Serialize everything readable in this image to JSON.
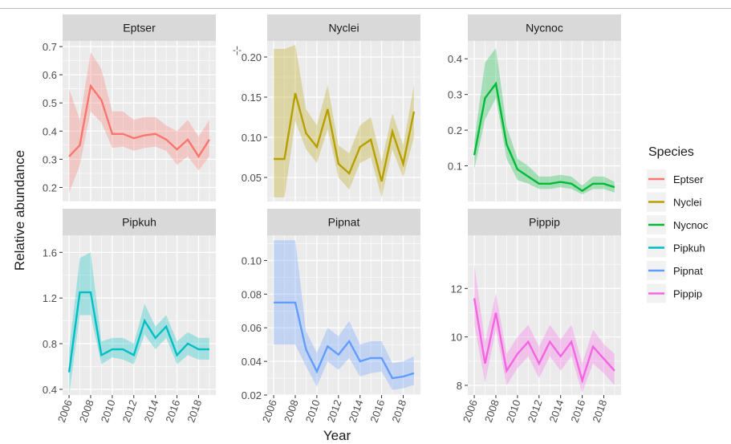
{
  "chart_data": {
    "type": "line",
    "xlabel": "Year",
    "ylabel": "Relative abundance",
    "legend": {
      "title": "Species",
      "placement": "right"
    },
    "x_ticks": [
      "2006",
      "2008",
      "2010",
      "2012",
      "2014",
      "2016",
      "2018"
    ],
    "x": [
      2006,
      2007,
      2008,
      2009,
      2010,
      2011,
      2012,
      2013,
      2014,
      2015,
      2016,
      2017,
      2018,
      2019
    ],
    "panels": [
      {
        "name": "Eptser",
        "color": "#F8766D",
        "ylim": [
          0.15,
          0.72
        ],
        "y_ticks": [
          "0.2",
          "0.3",
          "0.4",
          "0.5",
          "0.6",
          "0.7"
        ],
        "y_tick_values": [
          0.2,
          0.3,
          0.4,
          0.5,
          0.6,
          0.7
        ],
        "values": [
          0.31,
          0.35,
          0.56,
          0.51,
          0.39,
          0.39,
          0.375,
          0.385,
          0.39,
          0.37,
          0.335,
          0.37,
          0.31,
          0.37
        ],
        "lower": [
          0.18,
          0.28,
          0.47,
          0.43,
          0.34,
          0.345,
          0.33,
          0.34,
          0.345,
          0.33,
          0.28,
          0.31,
          0.26,
          0.31
        ],
        "upper": [
          0.55,
          0.44,
          0.68,
          0.62,
          0.47,
          0.47,
          0.44,
          0.45,
          0.45,
          0.42,
          0.4,
          0.44,
          0.38,
          0.44
        ]
      },
      {
        "name": "Nyclei",
        "color": "#B79F00",
        "ylim": [
          0.02,
          0.22
        ],
        "y_ticks": [
          "0.05",
          "0.10",
          "0.15",
          "0.20"
        ],
        "y_tick_values": [
          0.05,
          0.1,
          0.15,
          0.2
        ],
        "values": [
          0.073,
          0.073,
          0.155,
          0.105,
          0.088,
          0.135,
          0.067,
          0.055,
          0.088,
          0.097,
          0.045,
          0.107,
          0.067,
          0.132
        ],
        "lower": [
          0.025,
          0.025,
          0.12,
          0.085,
          0.068,
          0.11,
          0.05,
          0.035,
          0.068,
          0.075,
          0.025,
          0.085,
          0.05,
          0.1
        ],
        "upper": [
          0.21,
          0.21,
          0.215,
          0.135,
          0.115,
          0.165,
          0.09,
          0.08,
          0.115,
          0.125,
          0.07,
          0.13,
          0.09,
          0.165
        ]
      },
      {
        "name": "Nycnoc",
        "color": "#00BA38",
        "ylim": [
          0.0,
          0.45
        ],
        "y_ticks": [
          "0.1",
          "0.2",
          "0.3",
          "0.4"
        ],
        "y_tick_values": [
          0.1,
          0.2,
          0.3,
          0.4
        ],
        "values": [
          0.13,
          0.29,
          0.33,
          0.16,
          0.09,
          0.07,
          0.05,
          0.05,
          0.055,
          0.05,
          0.03,
          0.05,
          0.05,
          0.04
        ],
        "lower": [
          0.09,
          0.23,
          0.29,
          0.12,
          0.06,
          0.05,
          0.035,
          0.035,
          0.04,
          0.035,
          0.02,
          0.035,
          0.035,
          0.025
        ],
        "upper": [
          0.17,
          0.39,
          0.43,
          0.21,
          0.12,
          0.1,
          0.07,
          0.07,
          0.075,
          0.07,
          0.045,
          0.07,
          0.07,
          0.055
        ]
      },
      {
        "name": "Pipkuh",
        "color": "#00BFC4",
        "ylim": [
          0.35,
          1.75
        ],
        "y_ticks": [
          "0.4",
          "0.8",
          "1.2",
          "1.6"
        ],
        "y_tick_values": [
          0.4,
          0.8,
          1.2,
          1.6
        ],
        "values": [
          0.55,
          1.25,
          1.25,
          0.7,
          0.75,
          0.75,
          0.7,
          1.0,
          0.85,
          0.95,
          0.7,
          0.8,
          0.75,
          0.75
        ],
        "lower": [
          0.35,
          1.05,
          1.05,
          0.62,
          0.68,
          0.66,
          0.62,
          0.88,
          0.75,
          0.85,
          0.62,
          0.7,
          0.66,
          0.66
        ],
        "upper": [
          0.75,
          1.55,
          1.6,
          0.82,
          0.85,
          0.85,
          0.8,
          1.15,
          0.95,
          1.05,
          0.82,
          0.9,
          0.85,
          0.85
        ]
      },
      {
        "name": "Pipnat",
        "color": "#619CFF",
        "ylim": [
          0.02,
          0.115
        ],
        "y_ticks": [
          "0.02",
          "0.04",
          "0.06",
          "0.08",
          "0.10"
        ],
        "y_tick_values": [
          0.02,
          0.04,
          0.06,
          0.08,
          0.1
        ],
        "values": [
          0.075,
          0.075,
          0.075,
          0.047,
          0.034,
          0.049,
          0.044,
          0.052,
          0.04,
          0.042,
          0.042,
          0.03,
          0.031,
          0.033
        ],
        "lower": [
          0.05,
          0.05,
          0.05,
          0.037,
          0.025,
          0.04,
          0.035,
          0.042,
          0.031,
          0.033,
          0.034,
          0.023,
          0.024,
          0.026
        ],
        "upper": [
          0.112,
          0.112,
          0.112,
          0.058,
          0.045,
          0.06,
          0.055,
          0.064,
          0.05,
          0.052,
          0.052,
          0.039,
          0.04,
          0.043
        ]
      },
      {
        "name": "Pippip",
        "color": "#F564E3",
        "ylim": [
          7.6,
          14.2
        ],
        "y_ticks": [
          "8",
          "10",
          "12"
        ],
        "y_tick_values": [
          8,
          10,
          12
        ],
        "values": [
          11.6,
          8.9,
          11.0,
          8.6,
          9.3,
          9.8,
          8.9,
          9.8,
          9.2,
          9.8,
          8.2,
          9.6,
          9.1,
          8.6
        ],
        "lower": [
          10.5,
          8.1,
          10.3,
          8.0,
          8.7,
          9.2,
          8.3,
          9.2,
          8.6,
          9.2,
          7.7,
          8.9,
          8.5,
          8.0
        ],
        "upper": [
          13.0,
          9.8,
          11.8,
          9.3,
          10.0,
          10.5,
          9.6,
          10.5,
          9.9,
          10.5,
          8.9,
          10.3,
          9.7,
          9.3
        ]
      }
    ]
  },
  "stray_mark": "-¦-"
}
